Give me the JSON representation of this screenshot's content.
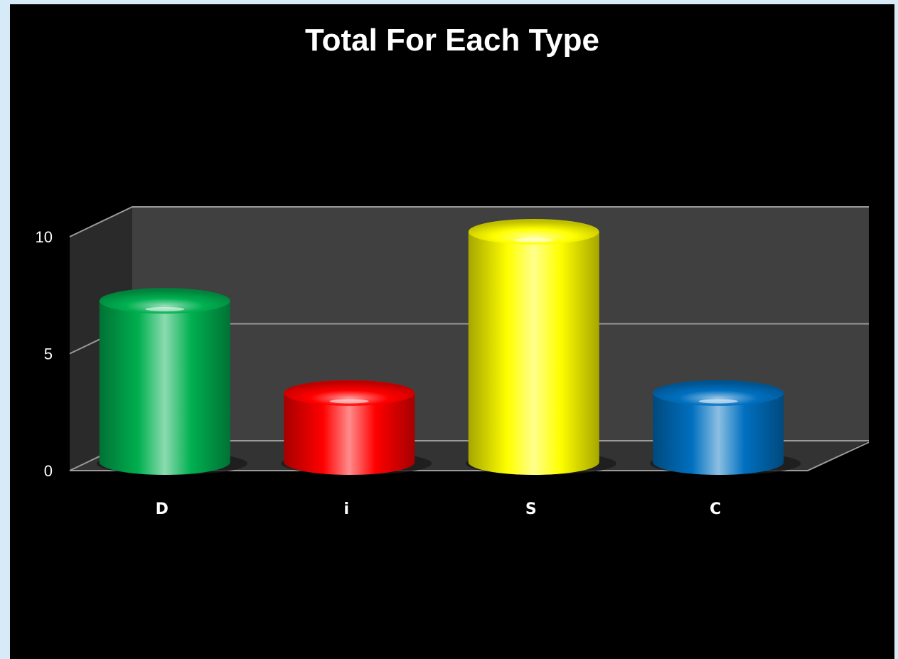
{
  "chart_data": {
    "type": "bar",
    "style": "3d-cylinder",
    "title": "Total For Each Type",
    "xlabel": "",
    "ylabel": "",
    "categories": [
      "D",
      "i",
      "S",
      "C"
    ],
    "values": [
      7,
      3,
      10,
      3
    ],
    "ylim": [
      0,
      10
    ],
    "yticks": [
      "0",
      "5",
      "10"
    ],
    "grid": true,
    "legend": "none",
    "colors": [
      "#00b050",
      "#ff0000",
      "#ffff00",
      "#0070c0"
    ]
  }
}
